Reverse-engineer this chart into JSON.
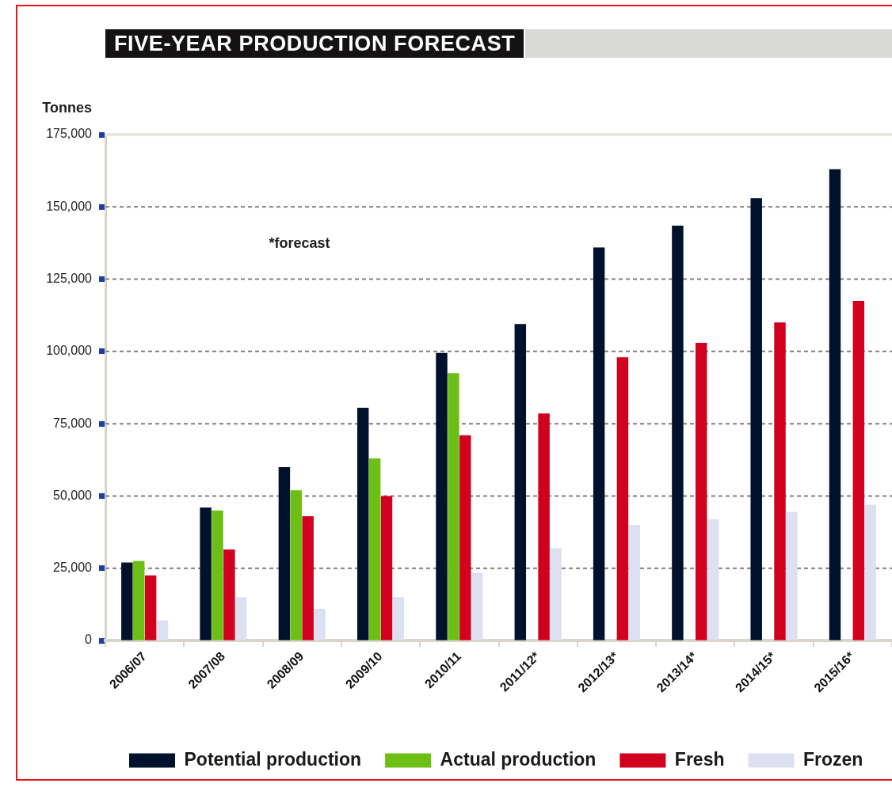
{
  "chart_data": {
    "type": "bar",
    "title": "FIVE-YEAR PRODUCTION FORECAST",
    "ylabel": "Tonnes",
    "annotations": [
      "*forecast"
    ],
    "categories": [
      "2006/07",
      "2007/08",
      "2008/09",
      "2009/10",
      "2010/11",
      "2011/12*",
      "2012/13*",
      "2013/14*",
      "2014/15*",
      "2015/16*"
    ],
    "series": [
      {
        "name": "Potential production",
        "color": "#00112b",
        "values": [
          27000,
          46000,
          60000,
          80500,
          99500,
          109500,
          136000,
          143500,
          153000,
          163000
        ]
      },
      {
        "name": "Actual production",
        "color": "#6cbf14",
        "values": [
          27500,
          45000,
          52000,
          63000,
          92500,
          null,
          null,
          null,
          null,
          null
        ]
      },
      {
        "name": "Fresh",
        "color": "#d0001e",
        "values": [
          22500,
          31500,
          43000,
          50000,
          71000,
          78500,
          98000,
          103000,
          110000,
          117500
        ]
      },
      {
        "name": "Frozen",
        "color": "#dde0f0",
        "values": [
          7000,
          15000,
          11000,
          15000,
          23500,
          32000,
          40000,
          42000,
          44500,
          47000
        ]
      }
    ],
    "ylim": [
      0,
      175000
    ],
    "yticks": [
      0,
      {
        "value": 25000,
        "label": "25,000"
      },
      {
        "value": 50000,
        "label": "50,000"
      },
      {
        "value": 75000,
        "label": "75,000"
      },
      {
        "value": 100000,
        "label": "100,000"
      },
      {
        "value": 125000,
        "label": "125,000"
      },
      {
        "value": 150000,
        "label": "150,000"
      },
      {
        "value": 175000,
        "label": "175,000"
      }
    ],
    "grid": "y",
    "legend": "bottom"
  }
}
